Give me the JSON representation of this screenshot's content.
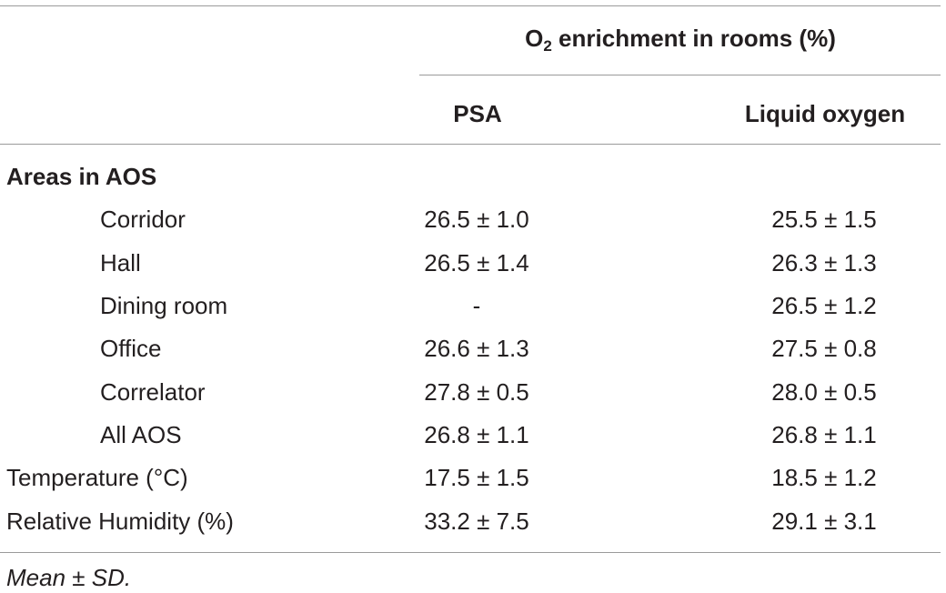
{
  "table": {
    "group_header": {
      "prefix": "O",
      "subscript": "2",
      "suffix": " enrichment in rooms (%)"
    },
    "columns": [
      "PSA",
      "Liquid oxygen"
    ],
    "section_label": "Areas in AOS",
    "area_rows": [
      {
        "label": "Corridor",
        "psa": "26.5 ± 1.0",
        "lox": "25.5 ± 1.5"
      },
      {
        "label": "Hall",
        "psa": "26.5 ± 1.4",
        "lox": "26.3 ± 1.3"
      },
      {
        "label": "Dining room",
        "psa": "-",
        "lox": "26.5 ± 1.2"
      },
      {
        "label": "Office",
        "psa": "26.6 ± 1.3",
        "lox": "27.5 ± 0.8"
      },
      {
        "label": "Correlator",
        "psa": "27.8 ± 0.5",
        "lox": "28.0 ± 0.5"
      },
      {
        "label": "All AOS",
        "psa": "26.8 ± 1.1",
        "lox": "26.8 ± 1.1"
      }
    ],
    "other_rows": [
      {
        "label": "Temperature (°C)",
        "psa": "17.5 ± 1.5",
        "lox": "18.5 ± 1.2"
      },
      {
        "label": "Relative Humidity (%)",
        "psa": "33.2 ± 7.5",
        "lox": "29.1 ± 3.1"
      }
    ],
    "footnote": "Mean ± SD."
  }
}
